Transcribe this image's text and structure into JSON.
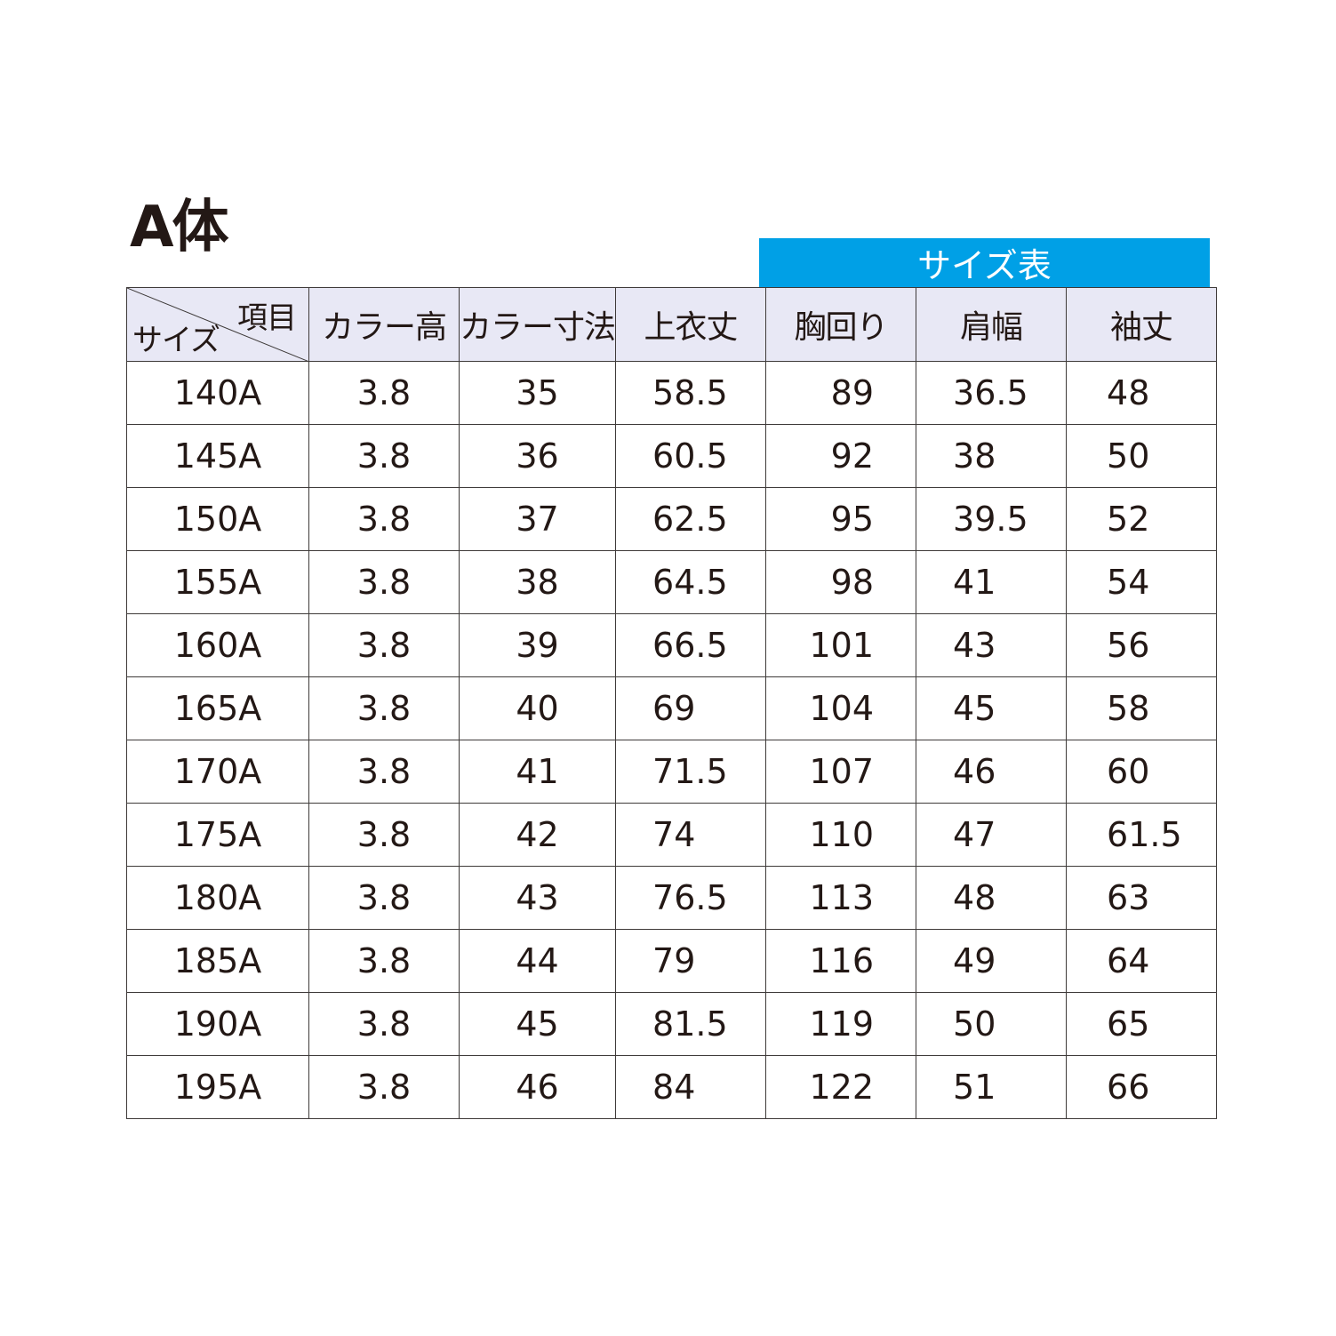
{
  "title": "A体",
  "banner": "サイズ表",
  "header": {
    "corner_item": "項目",
    "corner_size": "サイズ",
    "columns": [
      "カラー高",
      "カラー寸法",
      "上衣丈",
      "胸回り",
      "肩幅",
      "袖丈"
    ]
  },
  "colors": {
    "banner": "#00a0e6",
    "header_bg": "#e8e8f5"
  },
  "rows": [
    [
      "140A",
      "3.8",
      "35",
      "58.5",
      "89",
      "36.5",
      "48"
    ],
    [
      "145A",
      "3.8",
      "36",
      "60.5",
      "92",
      "38",
      "50"
    ],
    [
      "150A",
      "3.8",
      "37",
      "62.5",
      "95",
      "39.5",
      "52"
    ],
    [
      "155A",
      "3.8",
      "38",
      "64.5",
      "98",
      "41",
      "54"
    ],
    [
      "160A",
      "3.8",
      "39",
      "66.5",
      "101",
      "43",
      "56"
    ],
    [
      "165A",
      "3.8",
      "40",
      "69",
      "104",
      "45",
      "58"
    ],
    [
      "170A",
      "3.8",
      "41",
      "71.5",
      "107",
      "46",
      "60"
    ],
    [
      "175A",
      "3.8",
      "42",
      "74",
      "110",
      "47",
      "61.5"
    ],
    [
      "180A",
      "3.8",
      "43",
      "76.5",
      "113",
      "48",
      "63"
    ],
    [
      "185A",
      "3.8",
      "44",
      "79",
      "116",
      "49",
      "64"
    ],
    [
      "190A",
      "3.8",
      "45",
      "81.5",
      "119",
      "50",
      "65"
    ],
    [
      "195A",
      "3.8",
      "46",
      "84",
      "122",
      "51",
      "66"
    ]
  ]
}
